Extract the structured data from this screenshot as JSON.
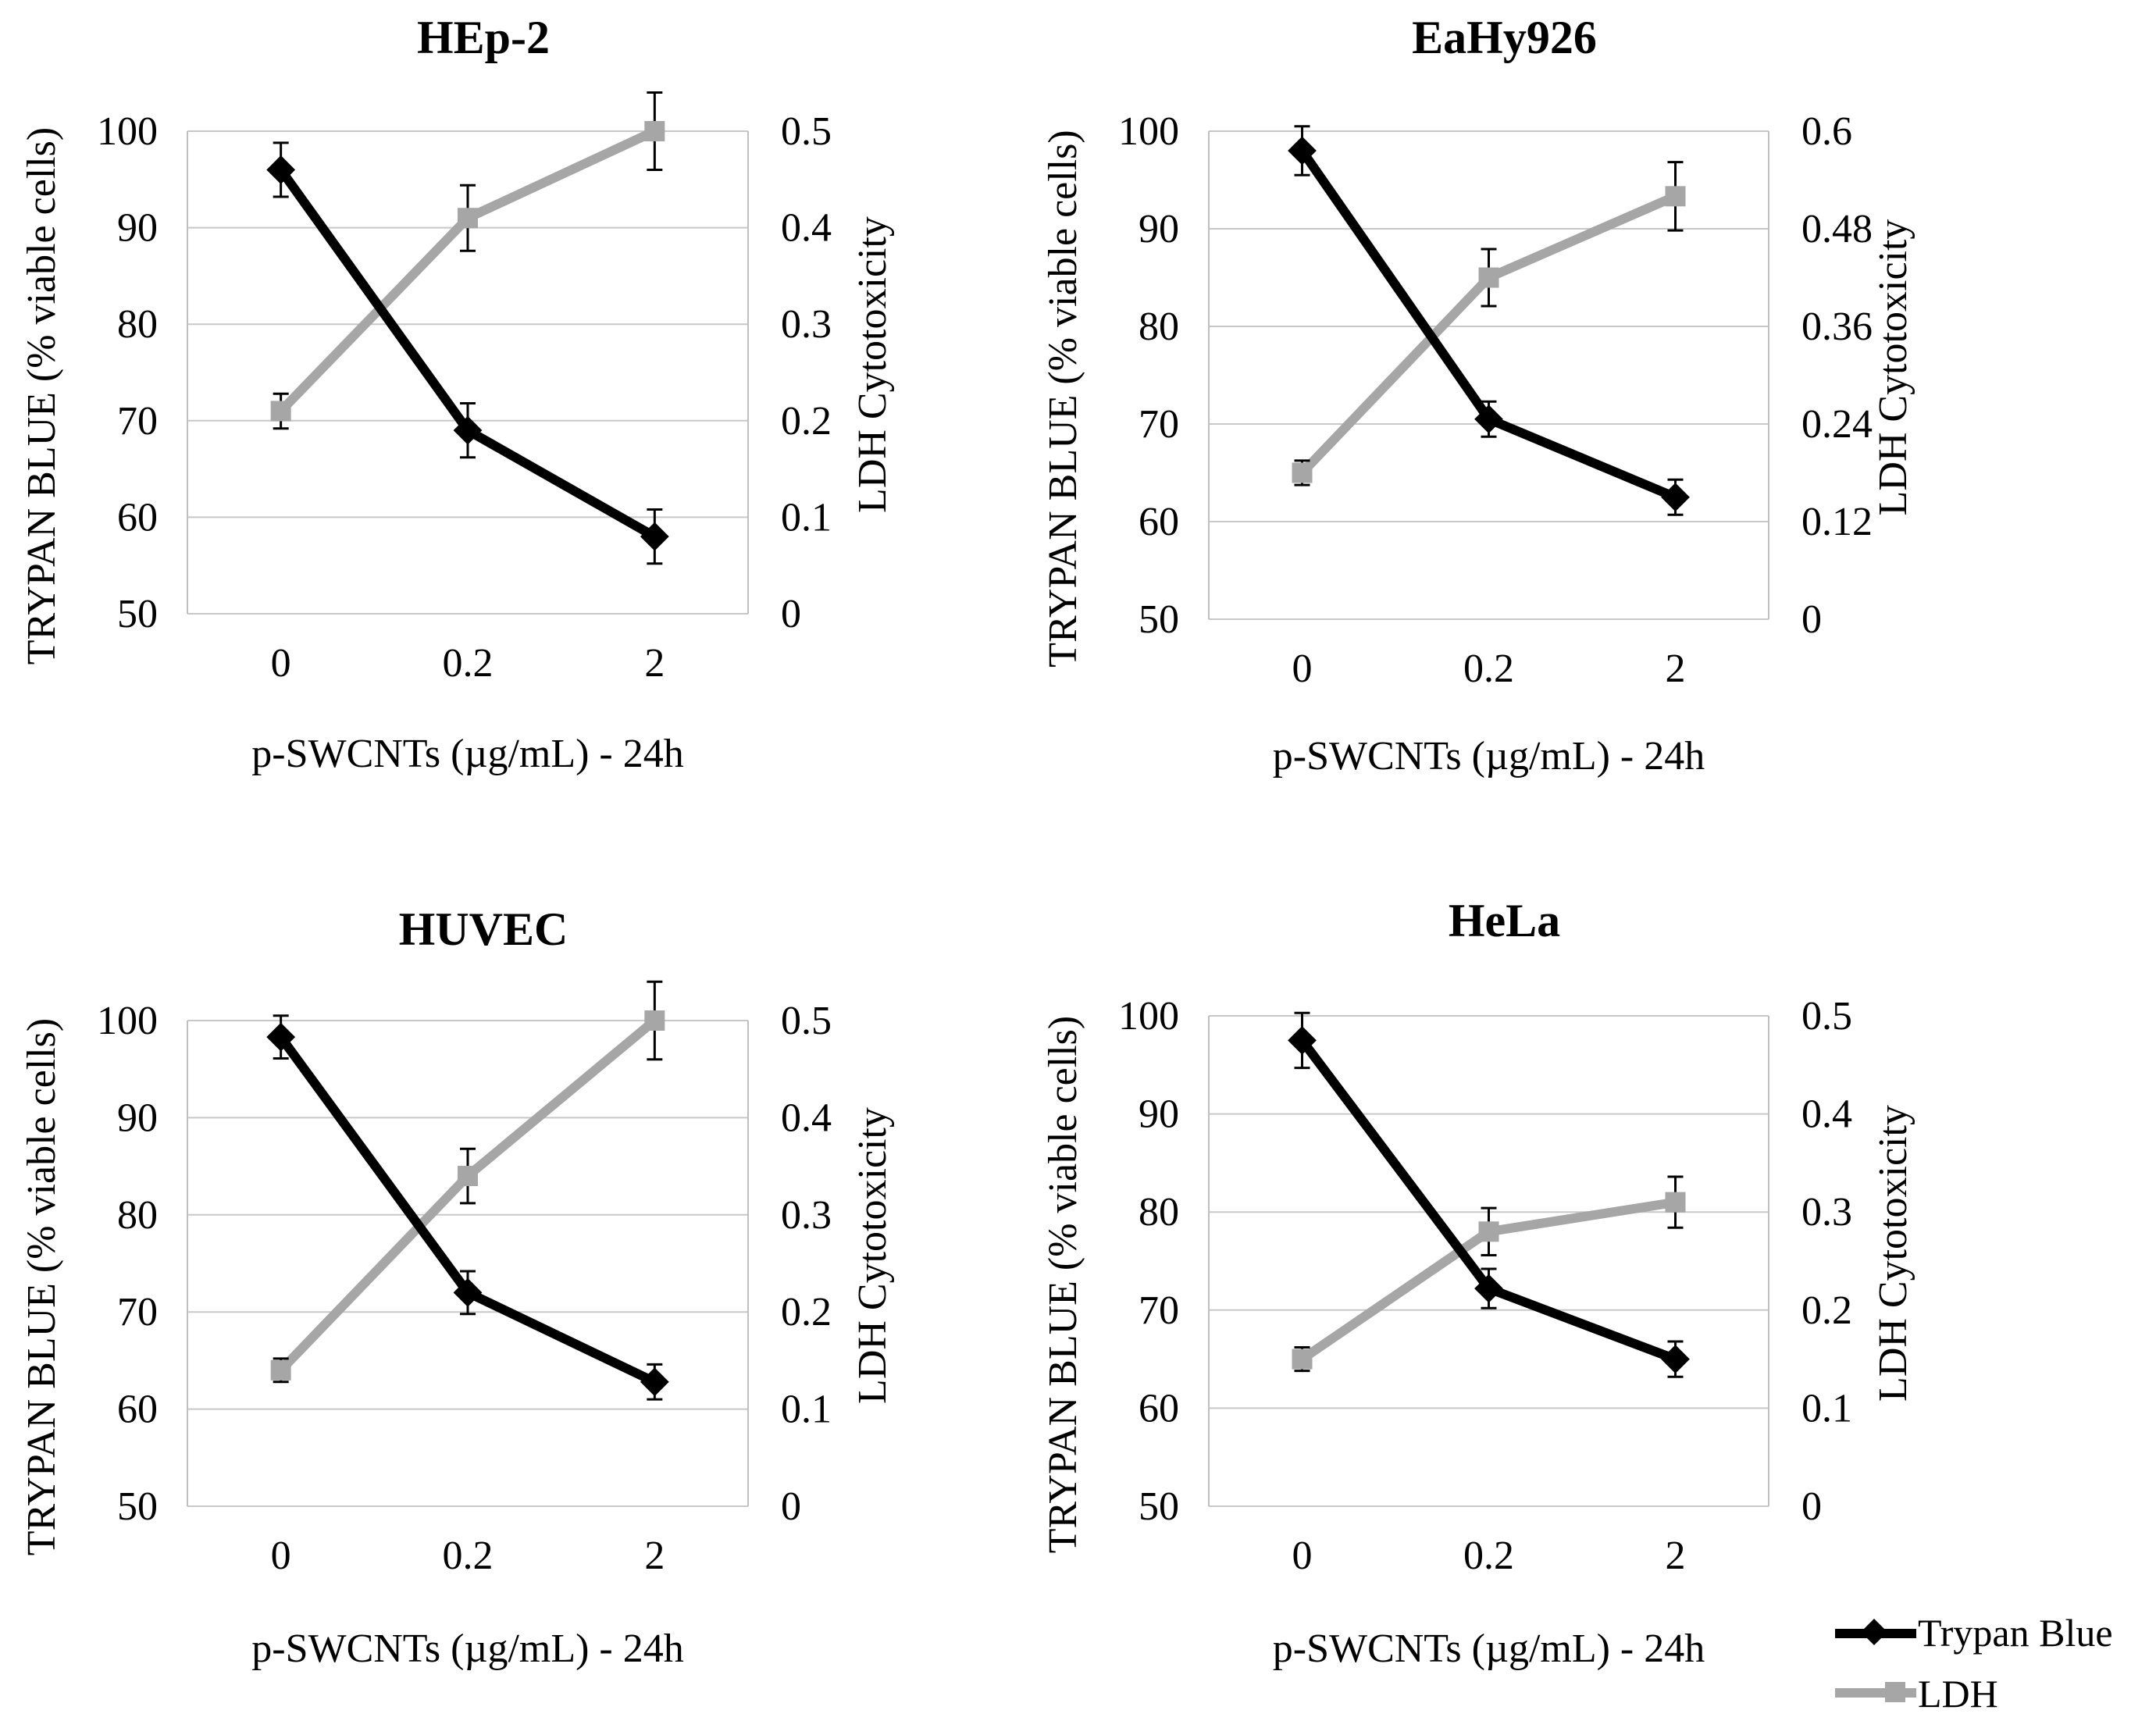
{
  "chart_data": [
    {
      "type": "line",
      "title": "HEp-2",
      "xlabel": "p-SWCNTs  (µg/mL)   - 24h",
      "ylabel": "TRYPAN BLUE (% viable cells)",
      "y2label": "LDH Cytotoxicity",
      "categories": [
        "0",
        "0.2",
        "2"
      ],
      "ylim": [
        50,
        100
      ],
      "yticks": [
        "50",
        "60",
        "70",
        "80",
        "90",
        "100"
      ],
      "y2lim": [
        0,
        0.5
      ],
      "y2ticks": [
        "0",
        "0.1",
        "0.2",
        "0.3",
        "0.4",
        "0.5"
      ],
      "series": [
        {
          "name": "Trypan Blue",
          "axis": "left",
          "values": [
            96,
            69,
            58
          ],
          "errors": [
            2.8,
            2.8,
            2.8
          ]
        },
        {
          "name": "LDH",
          "axis": "right",
          "values": [
            0.21,
            0.41,
            0.5
          ],
          "errors": [
            0.018,
            0.034,
            0.04
          ]
        }
      ]
    },
    {
      "type": "line",
      "title": "EaHy926",
      "xlabel": "p-SWCNTs  (µg/mL)   - 24h",
      "ylabel": "TRYPAN BLUE (% viable cells)",
      "y2label": "LDH Cytotoxicity",
      "categories": [
        "0",
        "0.2",
        "2"
      ],
      "ylim": [
        50,
        100
      ],
      "yticks": [
        "50",
        "60",
        "70",
        "80",
        "90",
        "100"
      ],
      "y2lim": [
        0,
        0.6
      ],
      "y2ticks": [
        "0",
        "0.12",
        "0.24",
        "0.36",
        "0.48",
        "0.6"
      ],
      "series": [
        {
          "name": "Trypan Blue",
          "axis": "left",
          "values": [
            98,
            70.5,
            62.5
          ],
          "errors": [
            2.5,
            1.8,
            1.8
          ]
        },
        {
          "name": "LDH",
          "axis": "right",
          "values": [
            0.18,
            0.42,
            0.52
          ],
          "errors": [
            0.015,
            0.035,
            0.042
          ]
        }
      ]
    },
    {
      "type": "line",
      "title": "HUVEC",
      "xlabel": "p-SWCNTs  (µg/mL)   - 24h",
      "ylabel": "TRYPAN BLUE (% viable cells)",
      "y2label": "LDH Cytotoxicity",
      "categories": [
        "0",
        "0.2",
        "2"
      ],
      "ylim": [
        50,
        100
      ],
      "yticks": [
        "50",
        "60",
        "70",
        "80",
        "90",
        "100"
      ],
      "y2lim": [
        0,
        0.5
      ],
      "y2ticks": [
        "0",
        "0.1",
        "0.2",
        "0.3",
        "0.4",
        "0.5"
      ],
      "series": [
        {
          "name": "Trypan Blue",
          "axis": "left",
          "values": [
            98.3,
            72,
            62.8
          ],
          "errors": [
            2.2,
            2.2,
            1.8
          ]
        },
        {
          "name": "LDH",
          "axis": "right",
          "values": [
            0.14,
            0.34,
            0.5
          ],
          "errors": [
            0.012,
            0.028,
            0.04
          ]
        }
      ]
    },
    {
      "type": "line",
      "title": "HeLa",
      "xlabel": "p-SWCNTs  (µg/mL)   - 24h",
      "ylabel": "TRYPAN BLUE (% viable cells)",
      "y2label": "LDH Cytotoxicity",
      "categories": [
        "0",
        "0.2",
        "2"
      ],
      "ylim": [
        50,
        100
      ],
      "yticks": [
        "50",
        "60",
        "70",
        "80",
        "90",
        "100"
      ],
      "y2lim": [
        0,
        0.5
      ],
      "y2ticks": [
        "0",
        "0.1",
        "0.2",
        "0.3",
        "0.4",
        "0.5"
      ],
      "series": [
        {
          "name": "Trypan Blue",
          "axis": "left",
          "values": [
            97.5,
            72.2,
            65
          ],
          "errors": [
            2.8,
            2,
            1.8
          ]
        },
        {
          "name": "LDH",
          "axis": "right",
          "values": [
            0.15,
            0.28,
            0.31
          ],
          "errors": [
            0.012,
            0.024,
            0.026
          ]
        }
      ]
    }
  ],
  "legend": {
    "items": [
      {
        "label": "Trypan Blue",
        "color": "#000000",
        "marker": "diamond"
      },
      {
        "label": "LDH",
        "color": "#a6a6a6",
        "marker": "square"
      }
    ]
  },
  "colors": {
    "trypan": "#000000",
    "ldh": "#a6a6a6",
    "grid": "#c8c8c8",
    "axis": "#bfbfbf"
  }
}
